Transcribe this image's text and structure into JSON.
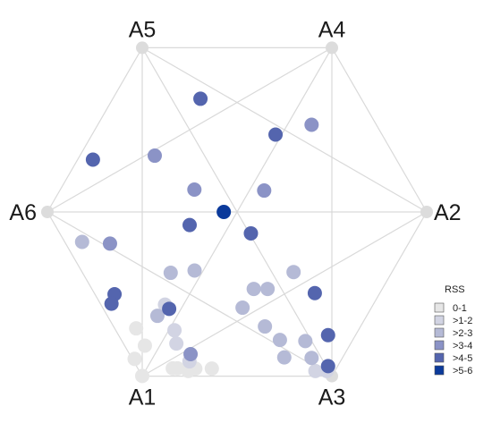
{
  "chart_data": {
    "type": "scatter",
    "title": "",
    "anchors": [
      {
        "name": "A1",
        "x": -0.5,
        "y": -0.866
      },
      {
        "name": "A2",
        "x": 1.0,
        "y": 0.0
      },
      {
        "name": "A3",
        "x": 0.5,
        "y": -0.866
      },
      {
        "name": "A4",
        "x": 0.5,
        "y": 0.866
      },
      {
        "name": "A5",
        "x": -0.5,
        "y": 0.866
      },
      {
        "name": "A6",
        "x": -1.0,
        "y": 0.0
      }
    ],
    "legend": {
      "title": "RSS",
      "placement": "right",
      "classes": [
        {
          "label": "0-1",
          "color": "#e6e6e6"
        },
        {
          "label": ">1-2",
          "color": "#d2d4e3"
        },
        {
          "label": ">2-3",
          "color": "#b5bad6"
        },
        {
          "label": ">3-4",
          "color": "#8b93c6"
        },
        {
          "label": ">4-5",
          "color": "#5465ae"
        },
        {
          "label": ">5-6",
          "color": "#0b3a9b"
        }
      ]
    },
    "points": [
      {
        "x": -0.5,
        "y": -0.865,
        "cls": 0
      },
      {
        "x": -0.54,
        "y": -0.775,
        "cls": 0
      },
      {
        "x": -0.486,
        "y": -0.705,
        "cls": 0
      },
      {
        "x": -0.532,
        "y": -0.614,
        "cls": 0
      },
      {
        "x": -0.339,
        "y": -0.825,
        "cls": 0
      },
      {
        "x": -0.314,
        "y": -0.825,
        "cls": 0
      },
      {
        "x": -0.257,
        "y": -0.839,
        "cls": 0
      },
      {
        "x": -0.22,
        "y": -0.826,
        "cls": 0
      },
      {
        "x": -0.133,
        "y": -0.826,
        "cls": 0
      },
      {
        "x": -0.32,
        "y": -0.694,
        "cls": 1
      },
      {
        "x": -0.33,
        "y": -0.624,
        "cls": 1
      },
      {
        "x": -0.38,
        "y": -0.489,
        "cls": 1
      },
      {
        "x": -0.251,
        "y": -0.788,
        "cls": 1
      },
      {
        "x": 0.473,
        "y": -0.839,
        "cls": 1
      },
      {
        "x": 0.413,
        "y": -0.839,
        "cls": 1
      },
      {
        "x": -0.817,
        "y": -0.158,
        "cls": 2
      },
      {
        "x": -0.42,
        "y": -0.548,
        "cls": 2
      },
      {
        "x": -0.35,
        "y": -0.321,
        "cls": 2
      },
      {
        "x": -0.224,
        "y": -0.309,
        "cls": 2
      },
      {
        "x": 0.029,
        "y": -0.505,
        "cls": 2
      },
      {
        "x": 0.088,
        "y": -0.406,
        "cls": 2
      },
      {
        "x": 0.161,
        "y": -0.406,
        "cls": 2
      },
      {
        "x": 0.147,
        "y": -0.604,
        "cls": 2
      },
      {
        "x": 0.226,
        "y": -0.675,
        "cls": 2
      },
      {
        "x": 0.249,
        "y": -0.767,
        "cls": 2
      },
      {
        "x": 0.36,
        "y": -0.681,
        "cls": 2
      },
      {
        "x": 0.393,
        "y": -0.77,
        "cls": 2
      },
      {
        "x": 0.298,
        "y": -0.317,
        "cls": 2
      },
      {
        "x": -0.245,
        "y": -0.75,
        "cls": 3
      },
      {
        "x": -0.434,
        "y": 0.297,
        "cls": 3
      },
      {
        "x": -0.67,
        "y": -0.167,
        "cls": 3
      },
      {
        "x": -0.225,
        "y": 0.118,
        "cls": 3
      },
      {
        "x": 0.143,
        "y": 0.113,
        "cls": 3
      },
      {
        "x": 0.393,
        "y": 0.46,
        "cls": 3
      },
      {
        "x": -0.358,
        "y": -0.511,
        "cls": 4
      },
      {
        "x": -0.646,
        "y": -0.434,
        "cls": 4
      },
      {
        "x": -0.662,
        "y": -0.484,
        "cls": 4
      },
      {
        "x": 0.41,
        "y": -0.428,
        "cls": 4
      },
      {
        "x": 0.48,
        "y": -0.65,
        "cls": 4
      },
      {
        "x": 0.48,
        "y": -0.813,
        "cls": 4
      },
      {
        "x": -0.76,
        "y": 0.276,
        "cls": 4
      },
      {
        "x": -0.193,
        "y": 0.597,
        "cls": 4
      },
      {
        "x": -0.25,
        "y": -0.069,
        "cls": 4
      },
      {
        "x": 0.073,
        "y": -0.113,
        "cls": 4
      },
      {
        "x": 0.203,
        "y": 0.408,
        "cls": 4
      },
      {
        "x": -0.07,
        "y": 0.0,
        "cls": 5
      }
    ]
  }
}
